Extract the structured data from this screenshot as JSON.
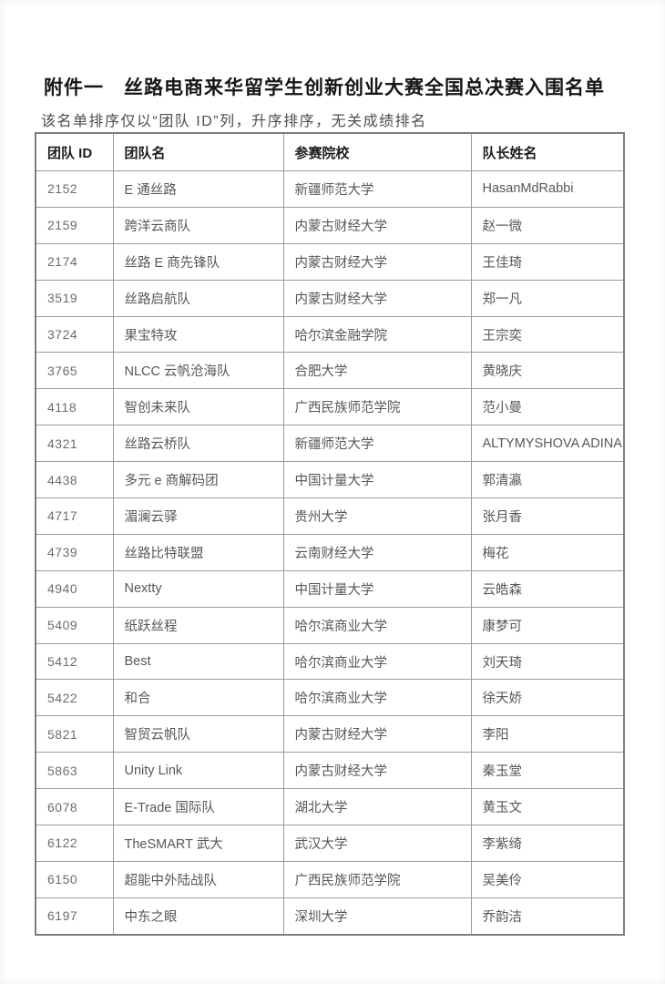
{
  "page": {
    "title": "附件一　丝路电商来华留学生创新创业大赛全国总决赛入围名单",
    "subtitle": "该名单排序仅以“团队 ID”列，升序排序，无关成绩排名"
  },
  "table": {
    "headers": [
      "团队 ID",
      "团队名",
      "参赛院校",
      "队长姓名"
    ],
    "rows": [
      [
        "2152",
        "E 通丝路",
        "新疆师范大学",
        "HasanMdRabbi"
      ],
      [
        "2159",
        "跨洋云商队",
        "内蒙古财经大学",
        "赵一微"
      ],
      [
        "2174",
        "丝路 E 商先锋队",
        "内蒙古财经大学",
        "王佳琦"
      ],
      [
        "3519",
        "丝路启航队",
        "内蒙古财经大学",
        "郑一凡"
      ],
      [
        "3724",
        "果宝特攻",
        "哈尔滨金融学院",
        "王宗奕"
      ],
      [
        "3765",
        "NLCC 云帆沧海队",
        "合肥大学",
        "黄晓庆"
      ],
      [
        "4118",
        "智创未来队",
        "广西民族师范学院",
        "范小曼"
      ],
      [
        "4321",
        "丝路云桥队",
        "新疆师范大学",
        "ALTYMYSHOVA ADINA"
      ],
      [
        "4438",
        "多元 e 商解码团",
        "中国计量大学",
        "郭清瀛"
      ],
      [
        "4717",
        "湄澜云驿",
        "贵州大学",
        "张月香"
      ],
      [
        "4739",
        "丝路比特联盟",
        "云南财经大学",
        "梅花"
      ],
      [
        "4940",
        "Nextty",
        "中国计量大学",
        "云皓森"
      ],
      [
        "5409",
        "纸跃丝程",
        "哈尔滨商业大学",
        "康梦可"
      ],
      [
        "5412",
        "Best",
        "哈尔滨商业大学",
        "刘天琦"
      ],
      [
        "5422",
        "和合",
        "哈尔滨商业大学",
        "徐天娇"
      ],
      [
        "5821",
        "智贸云帆队",
        "内蒙古财经大学",
        "李阳"
      ],
      [
        "5863",
        "Unity Link",
        "内蒙古财经大学",
        "秦玉堂"
      ],
      [
        "6078",
        "E-Trade 国际队",
        "湖北大学",
        "黄玉文"
      ],
      [
        "6122",
        "TheSMART 武大",
        "武汉大学",
        "李紫绮"
      ],
      [
        "6150",
        "超能中外陆战队",
        "广西民族师范学院",
        "吴美伶"
      ],
      [
        "6197",
        "中东之眼",
        "深圳大学",
        "乔韵洁"
      ]
    ]
  }
}
